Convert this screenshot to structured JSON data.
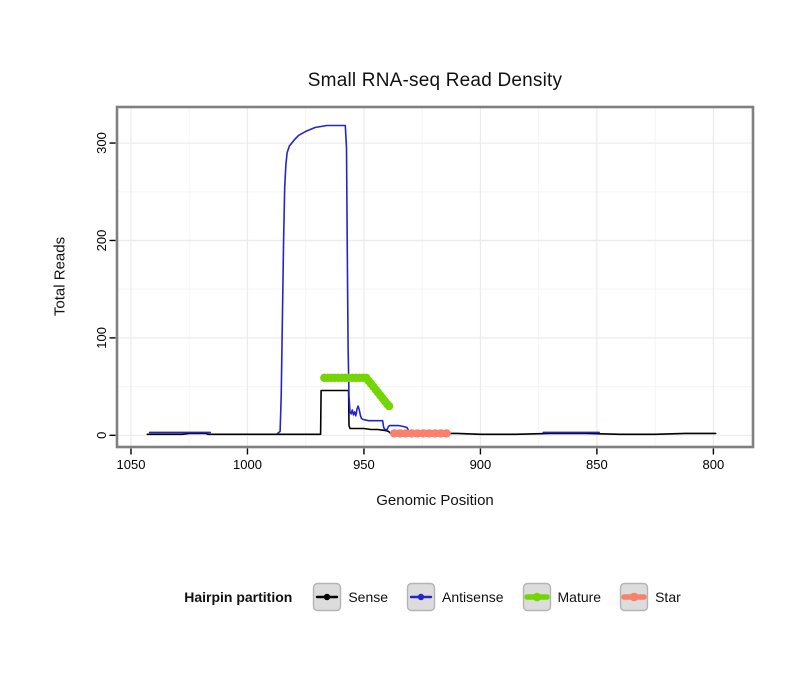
{
  "chart_data": {
    "type": "line",
    "title": "Small RNA-seq Read Density",
    "xlabel": "Genomic Position",
    "ylabel": "Total Reads",
    "x_ticks": [
      1050,
      1000,
      950,
      900,
      850,
      800
    ],
    "y_ticks": [
      0,
      100,
      200,
      300
    ],
    "xlim": [
      1056,
      783
    ],
    "ylim": [
      -12,
      337
    ],
    "x_axis_reversed": true,
    "grid": true,
    "panel_border_color": "#808080",
    "grid_major_color": "#ebebeb",
    "grid_minor_color": "#f5f5f5",
    "series": [
      {
        "name": "Sense",
        "color": "#000000",
        "width": 1.6,
        "dots": false,
        "dot_radius": 0,
        "segments": [
          [
            [
              1043,
              1
            ],
            [
              1036,
              1
            ],
            [
              1028,
              1
            ],
            [
              1025,
              2
            ],
            [
              1018,
              2
            ],
            [
              1017,
              1
            ],
            [
              1008,
              1
            ],
            [
              998,
              1
            ],
            [
              988,
              1
            ],
            [
              978,
              1
            ],
            [
              970,
              1
            ],
            [
              968.6,
              1
            ],
            [
              968.4,
              46
            ],
            [
              965,
              46
            ],
            [
              961,
              46
            ],
            [
              958,
              46
            ],
            [
              956.6,
              46
            ],
            [
              956.4,
              10
            ],
            [
              956,
              7
            ],
            [
              953,
              7
            ],
            [
              950,
              7
            ],
            [
              947,
              6
            ],
            [
              944,
              6
            ],
            [
              941,
              5
            ],
            [
              939.5,
              4
            ],
            [
              938.5,
              2
            ],
            [
              935,
              2
            ],
            [
              930,
              2
            ],
            [
              920,
              2
            ],
            [
              910,
              2
            ],
            [
              900,
              1
            ],
            [
              885,
              1
            ],
            [
              870,
              2
            ],
            [
              855,
              2
            ],
            [
              840,
              1
            ],
            [
              825,
              1
            ],
            [
              812,
              2
            ],
            [
              799,
              2
            ]
          ]
        ]
      },
      {
        "name": "Antisense",
        "color": "#2424cc",
        "width": 1.6,
        "dots": false,
        "dot_radius": 0,
        "segments": [
          [
            [
              1042,
              3
            ],
            [
              1035,
              3
            ],
            [
              1028,
              3
            ],
            [
              1022,
              3
            ],
            [
              1016,
              3
            ]
          ],
          [
            [
              987,
              2
            ],
            [
              986,
              4
            ],
            [
              985.5,
              40
            ],
            [
              985,
              120
            ],
            [
              984.5,
              200
            ],
            [
              984,
              255
            ],
            [
              983.5,
              278
            ],
            [
              983,
              290
            ],
            [
              982,
              297
            ],
            [
              980,
              303
            ],
            [
              978,
              308
            ],
            [
              975,
              312
            ],
            [
              971,
              316
            ],
            [
              966,
              318
            ],
            [
              962,
              318
            ],
            [
              958,
              318
            ],
            [
              957.5,
              295
            ],
            [
              957.2,
              200
            ],
            [
              956.8,
              90
            ],
            [
              956.4,
              40
            ],
            [
              956,
              24
            ],
            [
              955.5,
              22
            ],
            [
              955,
              26
            ],
            [
              954.5,
              21
            ],
            [
              954,
              24
            ],
            [
              953.5,
              20
            ],
            [
              953,
              27
            ],
            [
              952.5,
              30
            ],
            [
              952,
              26
            ],
            [
              951.5,
              20
            ],
            [
              951,
              17
            ],
            [
              950,
              16
            ],
            [
              948,
              15
            ],
            [
              946,
              15
            ],
            [
              944,
              15
            ],
            [
              942,
              15
            ],
            [
              941.5,
              8
            ],
            [
              941,
              6
            ],
            [
              940,
              6
            ],
            [
              939.5,
              9
            ],
            [
              939,
              10
            ],
            [
              937,
              10
            ],
            [
              935,
              10
            ],
            [
              933,
              9
            ],
            [
              931.5,
              8
            ],
            [
              930.5,
              3
            ],
            [
              929,
              2
            ],
            [
              927,
              2
            ],
            [
              925.5,
              1
            ]
          ],
          [
            [
              873,
              3
            ],
            [
              867,
              3
            ],
            [
              860,
              3
            ],
            [
              853,
              3
            ],
            [
              849,
              3
            ]
          ]
        ]
      },
      {
        "name": "Mature",
        "color": "#73d602",
        "width": 7,
        "dots": true,
        "dot_radius": 4.2,
        "segments": [
          [
            [
              967,
              59
            ],
            [
              965.5,
              59
            ],
            [
              964,
              59
            ],
            [
              962.5,
              59
            ],
            [
              961,
              59
            ],
            [
              959.5,
              59
            ],
            [
              958,
              59
            ],
            [
              956.5,
              59
            ],
            [
              955,
              59
            ],
            [
              953.5,
              59
            ],
            [
              952,
              59
            ],
            [
              950.5,
              59
            ],
            [
              949,
              59
            ],
            [
              948,
              56
            ],
            [
              947,
              53
            ],
            [
              946,
              50
            ],
            [
              945,
              47
            ],
            [
              944,
              44
            ],
            [
              943,
              41
            ],
            [
              942,
              38
            ],
            [
              941,
              35
            ],
            [
              940,
              32
            ],
            [
              939.2,
              30
            ]
          ]
        ]
      },
      {
        "name": "Star",
        "color": "#f8806d",
        "width": 7,
        "dots": true,
        "dot_radius": 4.2,
        "segments": [
          [
            [
              937,
              2
            ],
            [
              934.5,
              2
            ],
            [
              932,
              2
            ],
            [
              929.5,
              2
            ],
            [
              927,
              2
            ],
            [
              924.5,
              2
            ],
            [
              922,
              2
            ],
            [
              919.5,
              2
            ],
            [
              917,
              2
            ],
            [
              914.5,
              2
            ]
          ]
        ]
      }
    ]
  },
  "legend": {
    "label": "Hairpin partition",
    "items": [
      {
        "label": "Sense",
        "color": "#000000",
        "thick": false
      },
      {
        "label": "Antisense",
        "color": "#2424cc",
        "thick": false
      },
      {
        "label": "Mature",
        "color": "#73d602",
        "thick": true
      },
      {
        "label": "Star",
        "color": "#f8806d",
        "thick": true
      }
    ]
  }
}
